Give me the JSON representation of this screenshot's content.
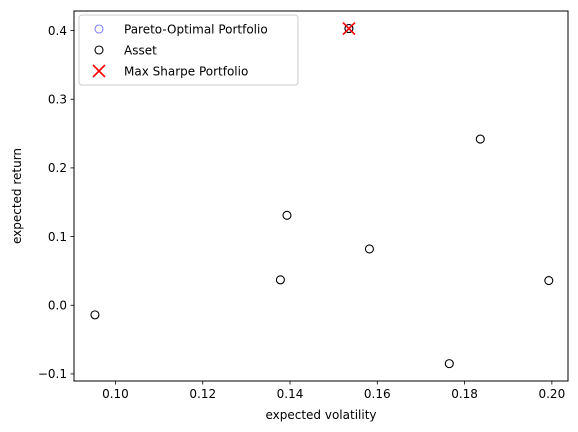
{
  "chart_data": {
    "type": "scatter",
    "xlabel": "expected volatility",
    "ylabel": "expected return",
    "xlim": [
      0.0905,
      0.2037
    ],
    "ylim": [
      -0.1103,
      0.4285
    ],
    "x_ticks": [
      0.1,
      0.12,
      0.14,
      0.16,
      0.18,
      0.2
    ],
    "x_tick_labels": [
      "0.10",
      "0.12",
      "0.14",
      "0.16",
      "0.18",
      "0.20"
    ],
    "y_ticks": [
      -0.1,
      0.0,
      0.1,
      0.2,
      0.3,
      0.4
    ],
    "y_tick_labels": [
      "−0.1",
      "0.0",
      "0.1",
      "0.2",
      "0.3",
      "0.4"
    ],
    "grid": false,
    "legend_position": "top-left",
    "series": [
      {
        "name": "Pareto-Optimal Portfolio",
        "marker": "open-circle",
        "color": "#8080ff",
        "points": [
          [
            0.1535,
            0.403
          ]
        ]
      },
      {
        "name": "Asset",
        "marker": "open-circle",
        "color": "#000000",
        "points": [
          [
            0.0953,
            -0.014
          ],
          [
            0.1378,
            0.037
          ],
          [
            0.1393,
            0.131
          ],
          [
            0.1535,
            0.403
          ],
          [
            0.1582,
            0.082
          ],
          [
            0.1765,
            -0.085
          ],
          [
            0.1836,
            0.242
          ],
          [
            0.1993,
            0.036
          ]
        ]
      },
      {
        "name": "Max Sharpe Portfolio",
        "marker": "x",
        "color": "#ff0000",
        "points": [
          [
            0.1535,
            0.403
          ]
        ]
      }
    ]
  }
}
